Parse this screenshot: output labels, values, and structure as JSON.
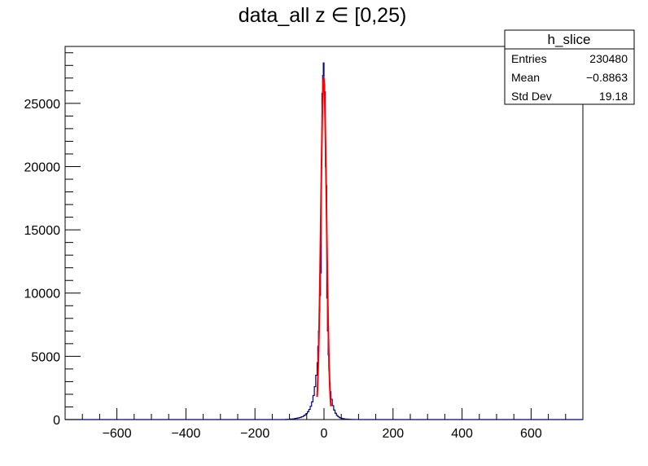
{
  "chart_data": {
    "type": "histogram",
    "title": "data_all z ∈ [0,25)",
    "xlabel": "",
    "ylabel": "",
    "xlim": [
      -750,
      750
    ],
    "ylim": [
      0,
      29500
    ],
    "x_ticks": [
      -600,
      -400,
      -200,
      0,
      200,
      400,
      600
    ],
    "x_tick_labels": [
      "−600",
      "−400",
      "−200",
      "0",
      "200",
      "400",
      "600"
    ],
    "y_ticks": [
      0,
      5000,
      10000,
      15000,
      20000,
      25000
    ],
    "y_tick_labels": [
      "0",
      "5000",
      "10000",
      "15000",
      "20000",
      "25000"
    ],
    "grid": false,
    "histogram_color": "#000080",
    "fit_color": "#ff0000",
    "bins": {
      "edges": [
        -110,
        -100,
        -90,
        -84,
        -78,
        -72,
        -66,
        -60,
        -56,
        -52,
        -48,
        -44,
        -40,
        -36,
        -32,
        -28,
        -24,
        -20,
        -18,
        -16,
        -14,
        -12,
        -10,
        -8,
        -6,
        -4,
        -2,
        0,
        2,
        4,
        6,
        8,
        10,
        12,
        14,
        16,
        18,
        20,
        24,
        28,
        32,
        36,
        40,
        44,
        48,
        52,
        56,
        60,
        66,
        72,
        78,
        84,
        90,
        100,
        110
      ],
      "counts": [
        20,
        40,
        60,
        90,
        120,
        160,
        220,
        300,
        380,
        480,
        620,
        800,
        1050,
        1400,
        1900,
        2600,
        3500,
        4500,
        5800,
        7000,
        8600,
        9800,
        11600,
        20500,
        25800,
        27200,
        28200,
        26500,
        25900,
        20000,
        18500,
        9600,
        7000,
        5100,
        3900,
        2900,
        2200,
        1600,
        1100,
        750,
        500,
        330,
        220,
        150,
        110,
        80,
        60,
        40,
        30,
        20,
        12,
        8,
        5,
        0
      ]
    },
    "fit": {
      "type": "gaussian",
      "constant": 27000,
      "mean": -0.9,
      "sigma": 8.2,
      "range": [
        -20,
        20
      ]
    },
    "stats_box": {
      "title": "h_slice",
      "position": "top-right",
      "rows": [
        {
          "label": "Entries",
          "value": "230480"
        },
        {
          "label": "Mean",
          "value": "−0.8863"
        },
        {
          "label": "Std Dev",
          "value": "19.18"
        }
      ]
    }
  }
}
